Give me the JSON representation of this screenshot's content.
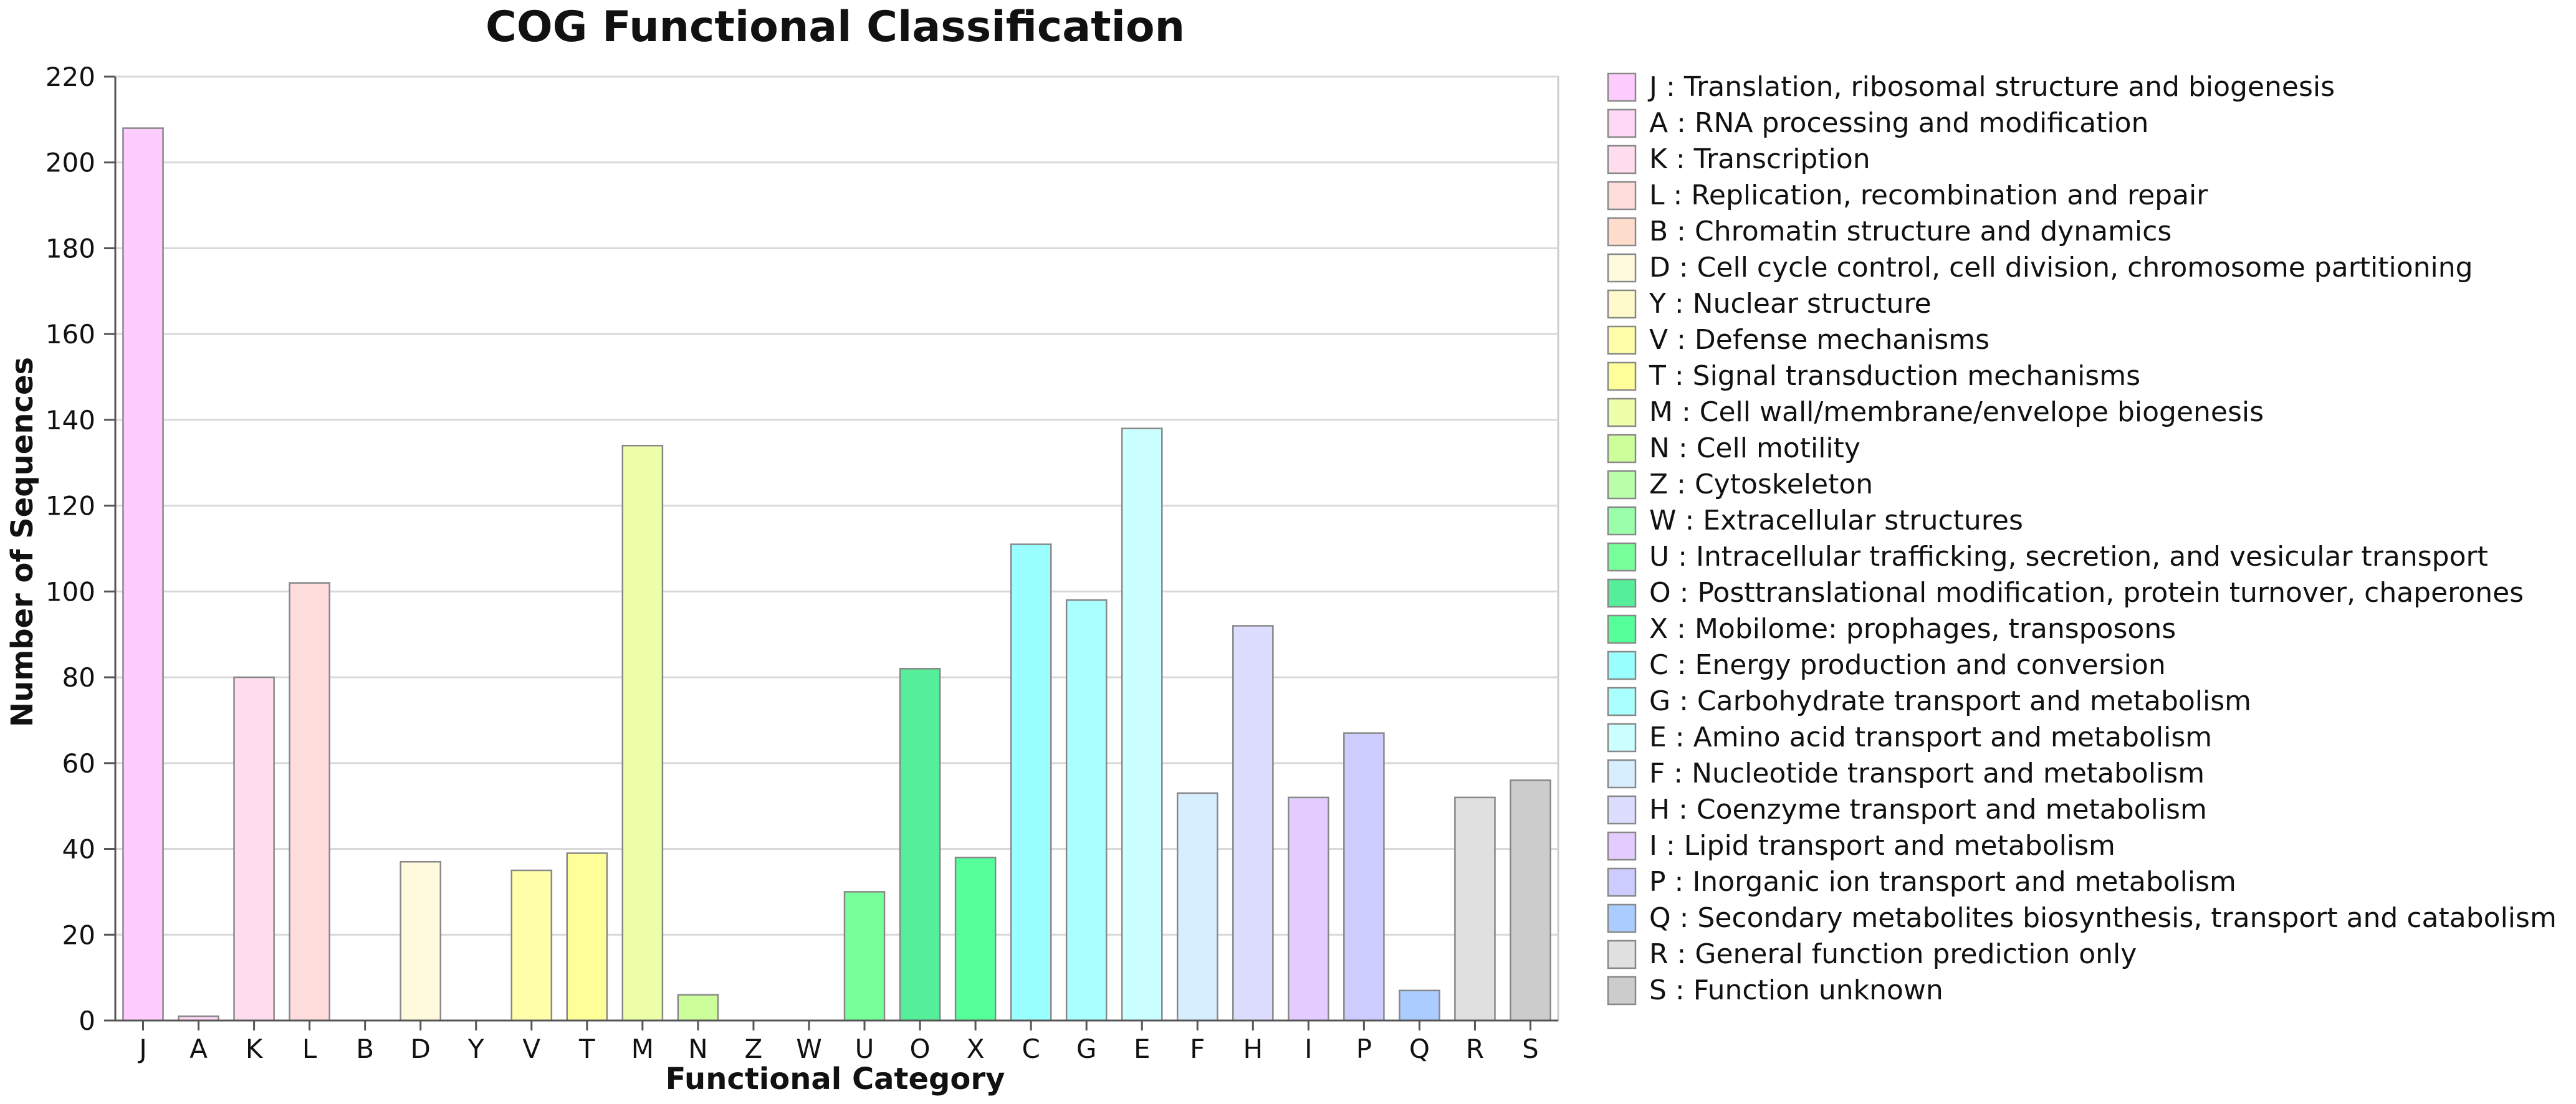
{
  "chart_data": {
    "type": "bar",
    "title": "COG Functional Classification",
    "xlabel": "Functional Category",
    "ylabel": "Number of Sequences",
    "ylim": [
      0,
      220
    ],
    "yticks": [
      0,
      20,
      40,
      60,
      80,
      100,
      120,
      140,
      160,
      180,
      200,
      220
    ],
    "grid": true,
    "legend_position": "right",
    "categories": [
      "J",
      "A",
      "K",
      "L",
      "B",
      "D",
      "Y",
      "V",
      "T",
      "M",
      "N",
      "Z",
      "W",
      "U",
      "O",
      "X",
      "C",
      "G",
      "E",
      "F",
      "H",
      "I",
      "P",
      "Q",
      "R",
      "S"
    ],
    "values": [
      208,
      1,
      80,
      102,
      0,
      37,
      0,
      35,
      39,
      134,
      6,
      0,
      0,
      30,
      82,
      38,
      111,
      98,
      138,
      53,
      92,
      52,
      67,
      7,
      52,
      56
    ],
    "colors": [
      "#FFCCFF",
      "#FFD7F7",
      "#FFDDEE",
      "#FFDDDD",
      "#FFDDCC",
      "#FFFADD",
      "#FFFACC",
      "#FFFFAA",
      "#FFFF99",
      "#EEFFAA",
      "#CCFF99",
      "#BBFFAA",
      "#99FFAA",
      "#77FF99",
      "#55EE99",
      "#55FF99",
      "#99FFFF",
      "#AAFFFF",
      "#CCFFFF",
      "#D7EEFF",
      "#DDDDFF",
      "#E3CCFF",
      "#CCCCFF",
      "#AACCFF",
      "#E0E0E0",
      "#CCCCCC"
    ],
    "legend": [
      "J : Translation, ribosomal structure and biogenesis",
      "A : RNA processing and modification",
      "K : Transcription",
      "L : Replication, recombination and repair",
      "B : Chromatin structure and dynamics",
      "D : Cell cycle control, cell division, chromosome partitioning",
      "Y : Nuclear structure",
      "V : Defense mechanisms",
      "T : Signal transduction mechanisms",
      "M : Cell wall/membrane/envelope biogenesis",
      "N : Cell motility",
      "Z : Cytoskeleton",
      "W : Extracellular structures",
      "U : Intracellular trafficking, secretion, and vesicular transport",
      "O : Posttranslational modification, protein turnover, chaperones",
      "X : Mobilome: prophages, transposons",
      "C : Energy production and conversion",
      "G : Carbohydrate transport and metabolism",
      "E : Amino acid transport and metabolism",
      "F : Nucleotide transport and metabolism",
      "H : Coenzyme transport and metabolism",
      "I : Lipid transport and metabolism",
      "P : Inorganic ion transport and metabolism",
      "Q : Secondary metabolites biosynthesis, transport and catabolism",
      "R : General function prediction only",
      "S : Function unknown"
    ]
  }
}
